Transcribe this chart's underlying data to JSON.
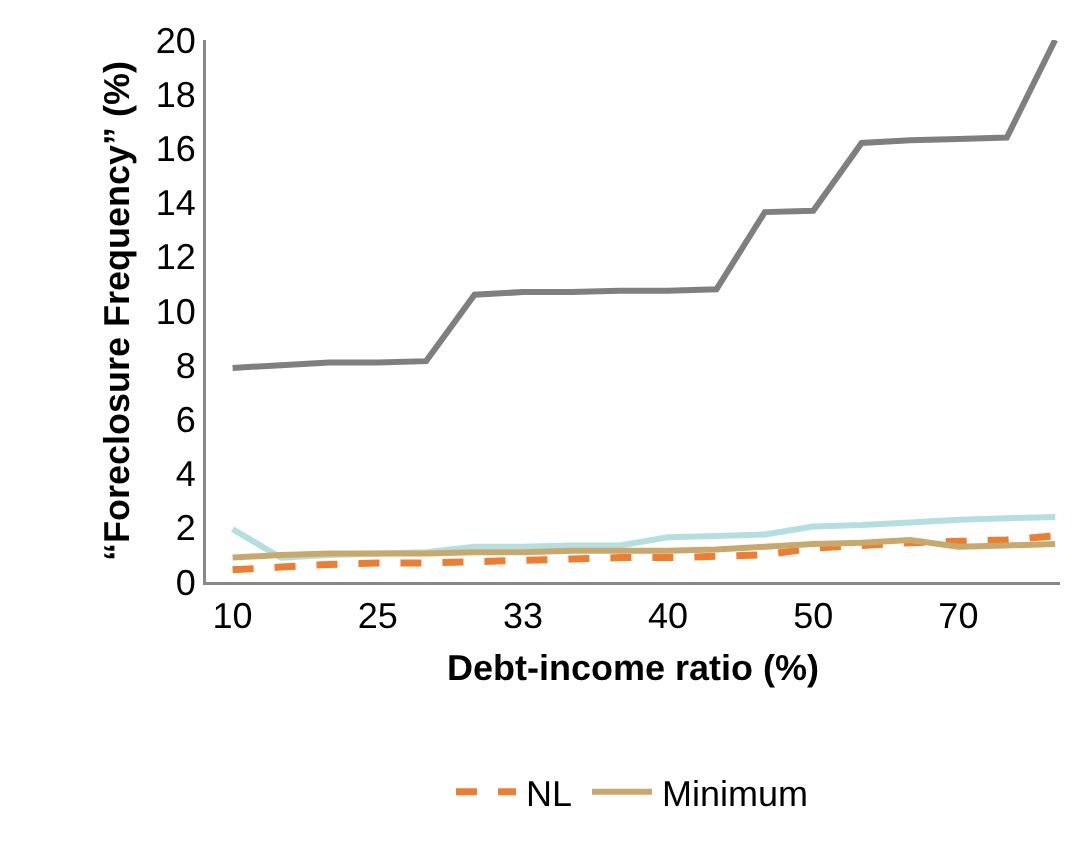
{
  "chart_data": {
    "type": "line",
    "xlabel": "Debt-income ratio (%)",
    "ylabel": "“Foreclosure Frequency” (%)",
    "categories": [
      "10",
      null,
      null,
      "25",
      null,
      null,
      "33",
      null,
      null,
      "40",
      null,
      null,
      "50",
      null,
      null,
      "70",
      null,
      null
    ],
    "series": [
      {
        "color": "#7f7f7f",
        "values": [
          7.9,
          8.0,
          8.1,
          8.1,
          8.15,
          10.6,
          10.7,
          10.7,
          10.75,
          10.75,
          10.8,
          13.65,
          13.7,
          16.2,
          16.3,
          16.35,
          16.4,
          20.0
        ]
      },
      {
        "color": "#b4dfe0",
        "values": [
          1.95,
          0.9,
          1.0,
          1.05,
          1.1,
          1.3,
          1.3,
          1.35,
          1.35,
          1.65,
          1.7,
          1.75,
          2.05,
          2.1,
          2.2,
          2.3,
          2.35,
          2.4
        ]
      },
      {
        "name": "NL",
        "color": "#ed7d31",
        "line_style": "dashed",
        "values": [
          0.45,
          0.55,
          0.65,
          0.7,
          0.7,
          0.75,
          0.8,
          0.85,
          0.9,
          0.9,
          0.95,
          1.0,
          1.25,
          1.35,
          1.45,
          1.5,
          1.55,
          1.7
        ]
      },
      {
        "name": "Minimum",
        "color": "#c9a96b",
        "values": [
          0.9,
          1.0,
          1.05,
          1.05,
          1.05,
          1.1,
          1.1,
          1.15,
          1.15,
          1.15,
          1.2,
          1.3,
          1.4,
          1.45,
          1.55,
          1.3,
          1.35,
          1.4
        ]
      }
    ],
    "ylim": [
      0,
      20
    ],
    "yticks": [
      0,
      2,
      4,
      6,
      8,
      10,
      12,
      14,
      16,
      18,
      20
    ],
    "grid": false,
    "legend": "bottom",
    "marker": "none"
  }
}
